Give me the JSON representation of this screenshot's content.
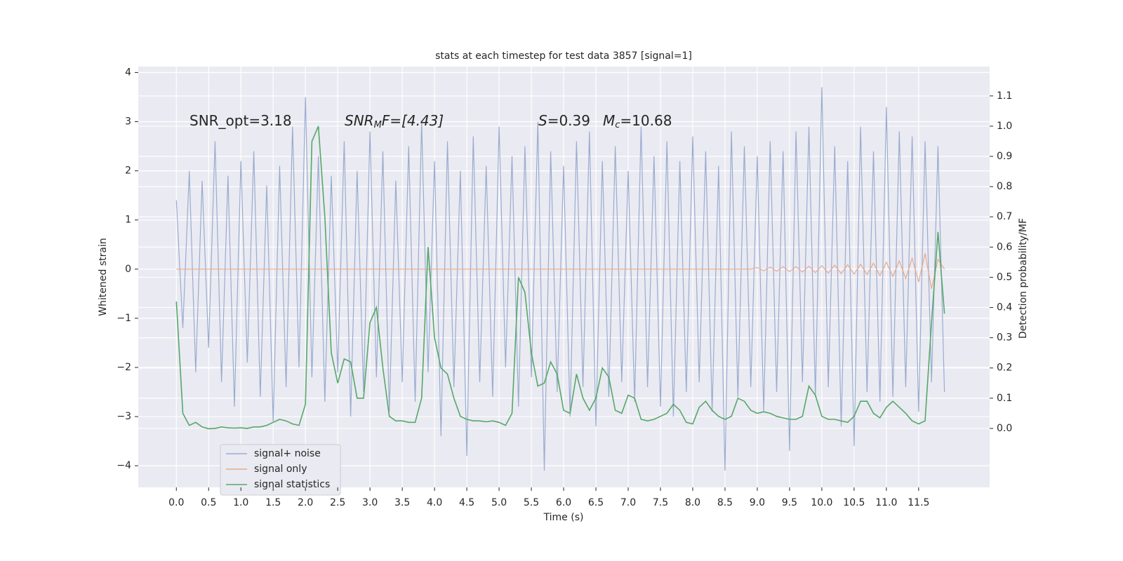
{
  "chart_data": {
    "type": "line",
    "title": "stats at each timestep for test data 3857 [signal=1]",
    "xlabel": "Time (s)",
    "ylabel": "Whitened strain",
    "y2label": "Detection probability/MF",
    "annotations": [
      [
        "SNR_opt=3.18"
      ],
      [
        "SNR",
        "M",
        "F=[4.43]"
      ],
      [
        "S",
        "=0.39"
      ],
      [
        "M",
        "c",
        "=10.68"
      ]
    ],
    "x": [
      0,
      0.1,
      0.2,
      0.3,
      0.4,
      0.5,
      0.6,
      0.7,
      0.8,
      0.9,
      1,
      1.1,
      1.2,
      1.3,
      1.4,
      1.5,
      1.6,
      1.7,
      1.8,
      1.9,
      2,
      2.1,
      2.2,
      2.3,
      2.4,
      2.5,
      2.6,
      2.7,
      2.8,
      2.9,
      3,
      3.1,
      3.2,
      3.3,
      3.4,
      3.5,
      3.6,
      3.7,
      3.8,
      3.9,
      4,
      4.1,
      4.2,
      4.3,
      4.4,
      4.5,
      4.6,
      4.7,
      4.8,
      4.9,
      5,
      5.1,
      5.2,
      5.3,
      5.4,
      5.5,
      5.6,
      5.7,
      5.8,
      5.9,
      6,
      6.1,
      6.2,
      6.3,
      6.4,
      6.5,
      6.6,
      6.7,
      6.8,
      6.9,
      7,
      7.1,
      7.2,
      7.3,
      7.4,
      7.5,
      7.6,
      7.7,
      7.8,
      7.9,
      8,
      8.1,
      8.2,
      8.3,
      8.4,
      8.5,
      8.6,
      8.7,
      8.8,
      8.9,
      9,
      9.1,
      9.2,
      9.3,
      9.4,
      9.5,
      9.6,
      9.7,
      9.8,
      9.9,
      10,
      10.1,
      10.2,
      10.3,
      10.4,
      10.5,
      10.6,
      10.7,
      10.8,
      10.9,
      11,
      11.1,
      11.2,
      11.3,
      11.4,
      11.5,
      11.6,
      11.7,
      11.8,
      11.9
    ],
    "series": [
      {
        "name": "signal+ noise",
        "color": "#9aaccf",
        "values": [
          1.4,
          -1.2,
          2.0,
          -2.1,
          1.8,
          -1.6,
          2.6,
          -2.3,
          1.9,
          -2.8,
          2.2,
          -1.9,
          2.4,
          -2.6,
          1.7,
          -3.1,
          2.1,
          -2.4,
          2.9,
          -2.0,
          3.5,
          -2.2,
          2.3,
          -2.7,
          1.9,
          -2.1,
          2.6,
          -3.0,
          2.0,
          -2.5,
          2.8,
          -2.2,
          2.4,
          -2.9,
          1.8,
          -2.3,
          2.5,
          -2.7,
          3.0,
          -2.1,
          2.2,
          -3.4,
          2.6,
          -2.4,
          2.0,
          -3.8,
          2.7,
          -2.3,
          2.1,
          -2.6,
          2.9,
          -2.0,
          2.3,
          -2.8,
          2.5,
          -2.2,
          3.0,
          -4.1,
          2.4,
          -2.5,
          2.1,
          -3.0,
          2.6,
          -2.4,
          2.8,
          -3.2,
          2.2,
          -2.6,
          2.5,
          -2.3,
          2.0,
          -2.7,
          2.9,
          -2.4,
          2.3,
          -2.8,
          2.6,
          -3.0,
          2.2,
          -2.5,
          2.7,
          -2.3,
          2.4,
          -2.9,
          2.1,
          -4.1,
          2.8,
          -2.6,
          2.5,
          -2.4,
          2.3,
          -2.9,
          2.6,
          -2.5,
          2.4,
          -3.7,
          2.8,
          -2.3,
          2.9,
          -2.6,
          3.7,
          -2.4,
          2.5,
          -3.2,
          2.2,
          -3.6,
          2.9,
          -2.5,
          2.4,
          -2.7,
          3.3,
          -2.6,
          2.8,
          -2.4,
          2.7,
          -2.9,
          2.6,
          -2.3,
          2.5,
          -2.5
        ]
      },
      {
        "name": "signal only",
        "color": "#e8a98a",
        "values": [
          0,
          0,
          0,
          0,
          0,
          0,
          0,
          0,
          0,
          0,
          0,
          0,
          0,
          0,
          0,
          0,
          0,
          0,
          0,
          0,
          0,
          0,
          0,
          0,
          0,
          0,
          0,
          0,
          0,
          0,
          0,
          0,
          0,
          0,
          0,
          0,
          0,
          0,
          0,
          0,
          0,
          0,
          0,
          0,
          0,
          0,
          0,
          0,
          0,
          0,
          0,
          0,
          0,
          0,
          0,
          0,
          0,
          0,
          0,
          0,
          0,
          0,
          0,
          0,
          0,
          0,
          0,
          0,
          0,
          0,
          0,
          0,
          0,
          0,
          0,
          0,
          0,
          0,
          0,
          0,
          0,
          0,
          0,
          0,
          0,
          0,
          0,
          0,
          0,
          0,
          0.03,
          -0.03,
          0.04,
          -0.04,
          0.05,
          -0.05,
          0.05,
          -0.06,
          0.06,
          -0.07,
          0.07,
          -0.08,
          0.08,
          -0.09,
          0.09,
          -0.1,
          0.1,
          -0.11,
          0.12,
          -0.13,
          0.14,
          -0.15,
          0.17,
          -0.19,
          0.22,
          -0.26,
          0.32,
          -0.4,
          0.2,
          0
        ]
      },
      {
        "name": "signal statistics",
        "color": "#55a868",
        "axis": "y2",
        "values": [
          0.42,
          0.05,
          0.01,
          0.02,
          0.005,
          -0.001,
          0,
          0.005,
          0.002,
          0.001,
          0.002,
          0,
          0.005,
          0.005,
          0.01,
          0.02,
          0.03,
          0.025,
          0.015,
          0.01,
          0.08,
          0.95,
          1.0,
          0.7,
          0.25,
          0.15,
          0.23,
          0.22,
          0.1,
          0.1,
          0.35,
          0.4,
          0.2,
          0.04,
          0.025,
          0.025,
          0.02,
          0.02,
          0.1,
          0.6,
          0.3,
          0.2,
          0.18,
          0.1,
          0.04,
          0.03,
          0.025,
          0.025,
          0.022,
          0.025,
          0.02,
          0.01,
          0.05,
          0.5,
          0.45,
          0.25,
          0.14,
          0.15,
          0.22,
          0.18,
          0.06,
          0.05,
          0.18,
          0.1,
          0.06,
          0.1,
          0.2,
          0.17,
          0.06,
          0.05,
          0.11,
          0.1,
          0.03,
          0.025,
          0.03,
          0.04,
          0.05,
          0.08,
          0.06,
          0.02,
          0.015,
          0.07,
          0.09,
          0.06,
          0.04,
          0.03,
          0.04,
          0.1,
          0.09,
          0.06,
          0.05,
          0.055,
          0.05,
          0.04,
          0.035,
          0.03,
          0.03,
          0.04,
          0.14,
          0.11,
          0.04,
          0.03,
          0.03,
          0.025,
          0.02,
          0.04,
          0.09,
          0.09,
          0.05,
          0.035,
          0.07,
          0.09,
          0.07,
          0.05,
          0.025,
          0.015,
          0.025,
          0.35,
          0.65,
          0.38
        ]
      }
    ],
    "xlim": [
      -0.59,
      12.6
    ],
    "ylim": [
      -4.44,
      4.12
    ],
    "y2lim": [
      -0.195,
      1.197
    ],
    "xticks": [
      {
        "value": 0,
        "label": "0.0"
      },
      0.5,
      {
        "value": 1,
        "label": "1.0"
      },
      1.5,
      {
        "value": 2,
        "label": "2.0"
      },
      2.5,
      {
        "value": 3,
        "label": "3.0"
      },
      3.5,
      {
        "value": 4,
        "label": "4.0"
      },
      4.5,
      {
        "value": 5,
        "label": "5.0"
      },
      5.5,
      {
        "value": 6,
        "label": "6.0"
      },
      6.5,
      {
        "value": 7,
        "label": "7.0"
      },
      7.5,
      {
        "value": 8,
        "label": "8.0"
      },
      8.5,
      {
        "value": 9,
        "label": "9.0"
      },
      9.5,
      {
        "value": 10,
        "label": "10.0"
      },
      10.5,
      {
        "value": 11,
        "label": "11.0"
      },
      11.5
    ],
    "yticks": [
      {
        "value": -4,
        "label": "−4"
      },
      {
        "value": -3,
        "label": "−3"
      },
      {
        "value": -2,
        "label": "−2"
      },
      {
        "value": -1,
        "label": "−1"
      },
      0,
      1,
      2,
      3,
      4
    ],
    "y2ticks": [
      {
        "value": 0,
        "label": "0.0"
      },
      0.1,
      0.2,
      0.3,
      0.4,
      0.5,
      0.6,
      0.7,
      0.8,
      0.9,
      {
        "value": 1,
        "label": "1.0"
      },
      1.1
    ],
    "grid": true,
    "legend": "lower left"
  }
}
